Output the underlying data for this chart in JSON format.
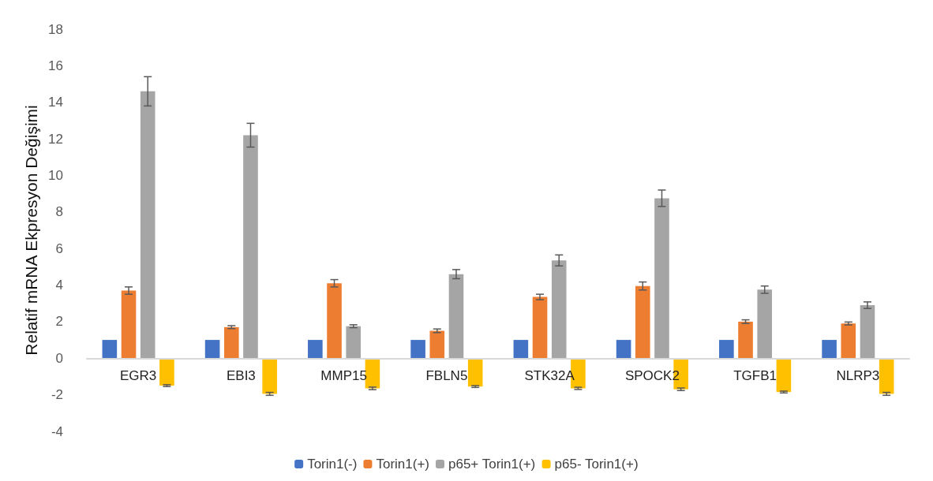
{
  "chart_data": {
    "type": "bar",
    "ylabel": "Relatif mRNA Ekpresyon Değişimi",
    "categories": [
      "EGR3",
      "EBI3",
      "MMP15",
      "FBLN5",
      "STK32A",
      "SPOCK2",
      "TGFB1",
      "NLRP3"
    ],
    "series": [
      {
        "name": "Torin1(-)",
        "color": "#4472c4",
        "values": [
          1,
          1,
          1,
          1,
          1,
          1,
          1,
          1
        ]
      },
      {
        "name": "Torin1(+)",
        "color": "#ed7d31",
        "values": [
          3.7,
          1.7,
          4.1,
          1.5,
          3.35,
          3.95,
          2.0,
          1.9
        ],
        "errors": [
          0.2,
          0.08,
          0.2,
          0.1,
          0.15,
          0.22,
          0.1,
          0.08
        ]
      },
      {
        "name": "p65+ Torin1(+)",
        "color": "#a5a5a5",
        "values": [
          14.6,
          12.2,
          1.75,
          4.6,
          5.35,
          8.75,
          3.75,
          2.9
        ],
        "errors": [
          0.8,
          0.65,
          0.08,
          0.25,
          0.3,
          0.45,
          0.2,
          0.18
        ]
      },
      {
        "name": "p65- Torin1(+)",
        "color": "#ffc000",
        "values": [
          -1.5,
          -1.95,
          -1.65,
          -1.55,
          -1.65,
          -1.7,
          -1.85,
          -1.95
        ],
        "errors": [
          0.05,
          0.08,
          0.07,
          0.05,
          0.06,
          0.07,
          0.05,
          0.08
        ]
      }
    ],
    "ylim": [
      -4,
      18
    ],
    "yticks": [
      -4,
      -2,
      0,
      2,
      4,
      6,
      8,
      10,
      12,
      14,
      16,
      18
    ],
    "grid": false,
    "legend": "bottom"
  }
}
